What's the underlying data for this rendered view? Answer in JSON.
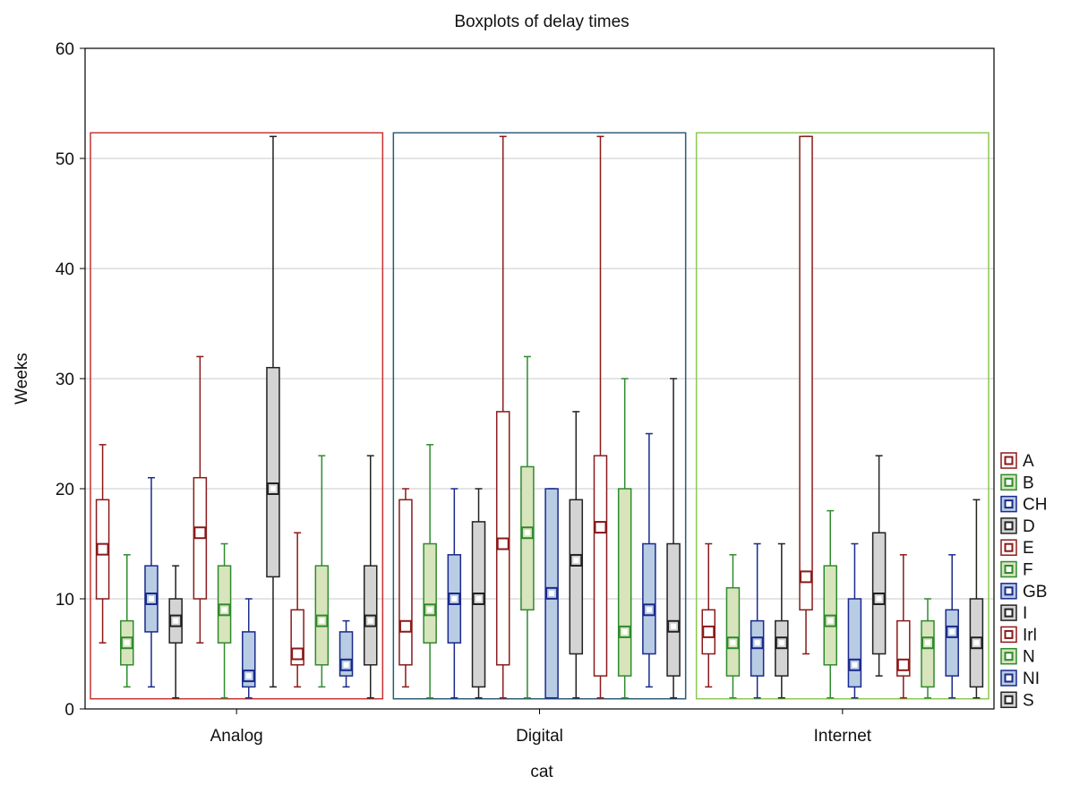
{
  "chart_data": {
    "type": "box",
    "title": "Boxplots of delay times",
    "xlabel": "cat",
    "ylabel": "Weeks",
    "ylim": [
      0,
      60
    ],
    "yticks": [
      0,
      10,
      20,
      30,
      40,
      50,
      60
    ],
    "grid": true,
    "legend_position": "right",
    "categories": [
      "Analog",
      "Digital",
      "Internet"
    ],
    "group_box_colors": [
      "#c83232",
      "#2d5a78",
      "#8cc850"
    ],
    "series": [
      {
        "name": "A",
        "color": "#8b1a1a",
        "fill": "#ffffff",
        "whisker": "#8b1a1a",
        "stats": [
          [
            6,
            10,
            14.5,
            19,
            24
          ],
          [
            2,
            4,
            7.5,
            19,
            20
          ],
          [
            2,
            5,
            7,
            9,
            15
          ]
        ]
      },
      {
        "name": "B",
        "color": "#2e8b2e",
        "fill": "#d8e4bc",
        "whisker": "#2e8b2e",
        "stats": [
          [
            2,
            4,
            6,
            8,
            14
          ],
          [
            1,
            6,
            9,
            15,
            24
          ],
          [
            1,
            3,
            6,
            11,
            14
          ]
        ]
      },
      {
        "name": "CH",
        "color": "#1a2a8b",
        "fill": "#b8cce4",
        "whisker": "#1a2a8b",
        "stats": [
          [
            2,
            7,
            10,
            13,
            21
          ],
          [
            1,
            6,
            10,
            14,
            20
          ],
          [
            1,
            3,
            6,
            8,
            15
          ]
        ]
      },
      {
        "name": "D",
        "color": "#222222",
        "fill": "#d4d4d4",
        "whisker": "#222222",
        "stats": [
          [
            1,
            6,
            8,
            10,
            13
          ],
          [
            1,
            2,
            10,
            17,
            20
          ],
          [
            1,
            3,
            6,
            8,
            15
          ]
        ]
      },
      {
        "name": "E",
        "color": "#8b1a1a",
        "fill": "#ffffff",
        "whisker": "#8b1a1a",
        "stats": [
          [
            6,
            10,
            16,
            21,
            32
          ],
          [
            1,
            4,
            15,
            27,
            52
          ],
          [
            5,
            9,
            12,
            52,
            52
          ]
        ]
      },
      {
        "name": "F",
        "color": "#2e8b2e",
        "fill": "#d8e4bc",
        "whisker": "#2e8b2e",
        "stats": [
          [
            1,
            6,
            9,
            13,
            15
          ],
          [
            1,
            9,
            16,
            22,
            32
          ],
          [
            1,
            4,
            8,
            13,
            18
          ]
        ]
      },
      {
        "name": "GB",
        "color": "#1a2a8b",
        "fill": "#b8cce4",
        "whisker": "#1a2a8b",
        "stats": [
          [
            1,
            2,
            3,
            7,
            10
          ],
          [
            1,
            1,
            10.5,
            20,
            20
          ],
          [
            1,
            2,
            4,
            10,
            15
          ]
        ]
      },
      {
        "name": "I",
        "color": "#222222",
        "fill": "#d4d4d4",
        "whisker": "#222222",
        "stats": [
          [
            2,
            12,
            20,
            31,
            52
          ],
          [
            1,
            5,
            13.5,
            19,
            27
          ],
          [
            3,
            5,
            10,
            16,
            23
          ]
        ]
      },
      {
        "name": "Irl",
        "color": "#8b1a1a",
        "fill": "#ffffff",
        "whisker": "#8b1a1a",
        "stats": [
          [
            2,
            4,
            5,
            9,
            16
          ],
          [
            1,
            3,
            16.5,
            23,
            52
          ],
          [
            1,
            3,
            4,
            8,
            14
          ]
        ]
      },
      {
        "name": "N",
        "color": "#2e8b2e",
        "fill": "#d8e4bc",
        "whisker": "#2e8b2e",
        "stats": [
          [
            2,
            4,
            8,
            13,
            23
          ],
          [
            1,
            3,
            7,
            20,
            30
          ],
          [
            1,
            2,
            6,
            8,
            10
          ]
        ]
      },
      {
        "name": "NI",
        "color": "#1a2a8b",
        "fill": "#b8cce4",
        "whisker": "#1a2a8b",
        "stats": [
          [
            2,
            3,
            4,
            7,
            8
          ],
          [
            2,
            5,
            9,
            15,
            25
          ],
          [
            1,
            3,
            7,
            9,
            14
          ]
        ]
      },
      {
        "name": "S",
        "color": "#222222",
        "fill": "#d4d4d4",
        "whisker": "#222222",
        "stats": [
          [
            1,
            4,
            8,
            13,
            23
          ],
          [
            1,
            3,
            7.5,
            15,
            30
          ],
          [
            1,
            2,
            6,
            10,
            19
          ]
        ]
      }
    ]
  }
}
